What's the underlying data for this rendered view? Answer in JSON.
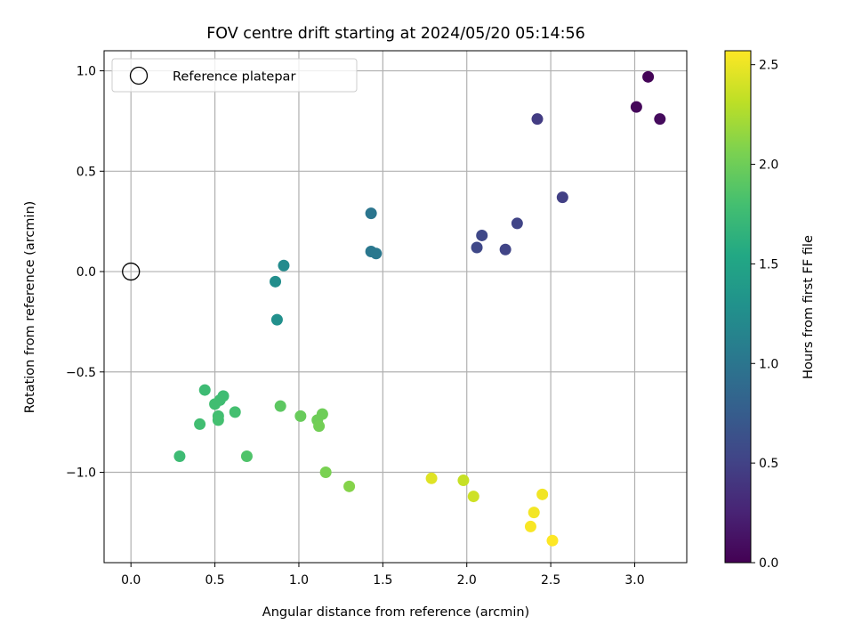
{
  "chart_data": {
    "type": "scatter",
    "title": "FOV centre drift starting at 2024/05/20 05:14:56",
    "xlabel": "Angular distance from reference (arcmin)",
    "ylabel": "Rotation from reference (arcmin)",
    "xlim": [
      -0.16,
      3.31
    ],
    "ylim": [
      -1.45,
      1.1
    ],
    "xticks": [
      0.0,
      0.5,
      1.0,
      1.5,
      2.0,
      2.5,
      3.0
    ],
    "xtick_labels": [
      "0.0",
      "0.5",
      "1.0",
      "1.5",
      "2.0",
      "2.5",
      "3.0"
    ],
    "yticks": [
      -1.0,
      -0.5,
      0.0,
      0.5,
      1.0
    ],
    "ytick_labels": [
      "−1.0",
      "−0.5",
      "0.0",
      "0.5",
      "1.0"
    ],
    "grid": true,
    "legend": {
      "position": "upper-left",
      "entries": [
        "Reference platepar"
      ]
    },
    "reference_point": {
      "x": 0.0,
      "y": 0.0
    },
    "colorbar": {
      "label": "Hours from first FF file",
      "colormap": "viridis",
      "range": [
        0.0,
        2.57
      ],
      "ticks": [
        0.0,
        0.5,
        1.0,
        1.5,
        2.0,
        2.5
      ],
      "tick_labels": [
        "0.0",
        "0.5",
        "1.0",
        "1.5",
        "2.0",
        "2.5"
      ]
    },
    "points": [
      {
        "x": 3.08,
        "y": 0.97,
        "c": 0.02
      },
      {
        "x": 3.01,
        "y": 0.82,
        "c": 0.05
      },
      {
        "x": 3.15,
        "y": 0.76,
        "c": 0.07
      },
      {
        "x": 2.42,
        "y": 0.76,
        "c": 0.45
      },
      {
        "x": 2.57,
        "y": 0.37,
        "c": 0.48
      },
      {
        "x": 2.3,
        "y": 0.24,
        "c": 0.52
      },
      {
        "x": 2.09,
        "y": 0.18,
        "c": 0.55
      },
      {
        "x": 2.06,
        "y": 0.12,
        "c": 0.55
      },
      {
        "x": 2.23,
        "y": 0.11,
        "c": 0.52
      },
      {
        "x": 1.43,
        "y": 0.29,
        "c": 1.0
      },
      {
        "x": 1.43,
        "y": 0.1,
        "c": 1.02
      },
      {
        "x": 1.46,
        "y": 0.09,
        "c": 1.03
      },
      {
        "x": 0.91,
        "y": 0.03,
        "c": 1.22
      },
      {
        "x": 0.86,
        "y": -0.05,
        "c": 1.25
      },
      {
        "x": 0.87,
        "y": -0.24,
        "c": 1.27
      },
      {
        "x": 0.44,
        "y": -0.59,
        "c": 1.75
      },
      {
        "x": 0.55,
        "y": -0.62,
        "c": 1.76
      },
      {
        "x": 0.53,
        "y": -0.64,
        "c": 1.77
      },
      {
        "x": 0.5,
        "y": -0.66,
        "c": 1.78
      },
      {
        "x": 0.62,
        "y": -0.7,
        "c": 1.8
      },
      {
        "x": 0.52,
        "y": -0.72,
        "c": 1.79
      },
      {
        "x": 0.52,
        "y": -0.74,
        "c": 1.8
      },
      {
        "x": 0.41,
        "y": -0.76,
        "c": 1.78
      },
      {
        "x": 0.29,
        "y": -0.92,
        "c": 1.75
      },
      {
        "x": 0.69,
        "y": -0.92,
        "c": 1.85
      },
      {
        "x": 0.89,
        "y": -0.67,
        "c": 1.92
      },
      {
        "x": 1.01,
        "y": -0.72,
        "c": 1.97
      },
      {
        "x": 1.14,
        "y": -0.71,
        "c": 2.0
      },
      {
        "x": 1.11,
        "y": -0.74,
        "c": 2.0
      },
      {
        "x": 1.12,
        "y": -0.77,
        "c": 2.02
      },
      {
        "x": 1.16,
        "y": -1.0,
        "c": 2.05
      },
      {
        "x": 1.3,
        "y": -1.07,
        "c": 2.1
      },
      {
        "x": 1.79,
        "y": -1.03,
        "c": 2.45
      },
      {
        "x": 1.98,
        "y": -1.04,
        "c": 2.35
      },
      {
        "x": 2.04,
        "y": -1.12,
        "c": 2.38
      },
      {
        "x": 2.45,
        "y": -1.11,
        "c": 2.52
      },
      {
        "x": 2.4,
        "y": -1.2,
        "c": 2.53
      },
      {
        "x": 2.38,
        "y": -1.27,
        "c": 2.55
      },
      {
        "x": 2.51,
        "y": -1.34,
        "c": 2.57
      }
    ]
  }
}
